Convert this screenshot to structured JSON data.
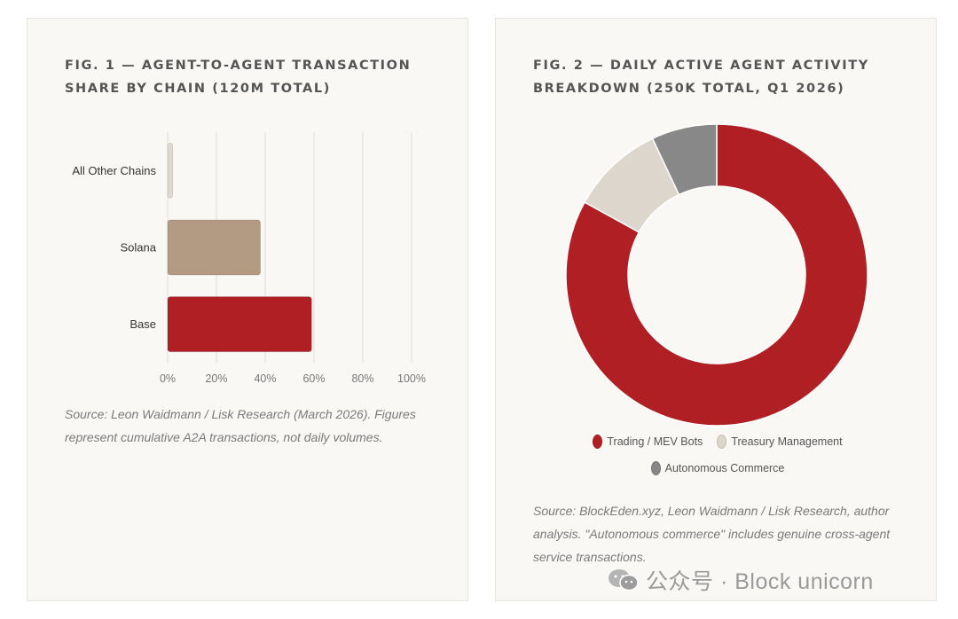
{
  "fig1": {
    "title": "FIG. 1 — AGENT-TO-AGENT TRANSACTION SHARE BY CHAIN (120M TOTAL)",
    "source": "Source: Leon Waidmann / Lisk Research (March 2026). Figures represent cumulative A2A transactions, not daily volumes."
  },
  "fig2": {
    "title": "FIG. 2 — DAILY ACTIVE AGENT ACTIVITY BREAKDOWN (250K TOTAL, Q1 2026)",
    "source": "Source: BlockEden.xyz, Leon Waidmann / Lisk Research, author analysis. \"Autonomous commerce\" includes genuine cross-agent service transactions."
  },
  "watermark": {
    "text": "公众号 · Block unicorn",
    "icon": "wechat-icon"
  },
  "chart_data": [
    {
      "type": "bar",
      "orientation": "horizontal",
      "title": "FIG. 1 — AGENT-TO-AGENT TRANSACTION SHARE BY CHAIN (120M TOTAL)",
      "categories": [
        "All Other Chains",
        "Solana",
        "Base"
      ],
      "values": [
        2,
        38,
        59
      ],
      "colors": [
        "#e0d9cf",
        "#b39a83",
        "#b01f24"
      ],
      "xlim": [
        0,
        100
      ],
      "xticks": [
        "0%",
        "20%",
        "40%",
        "60%",
        "80%",
        "100%"
      ],
      "tick_values": [
        0,
        20,
        40,
        60,
        80,
        100
      ],
      "grid": true,
      "legend": "none"
    },
    {
      "type": "pie",
      "donut": true,
      "title": "FIG. 2 — DAILY ACTIVE AGENT ACTIVITY BREAKDOWN (250K TOTAL, Q1 2026)",
      "labels": [
        "Trading / MEV Bots",
        "Treasury Management",
        "Autonomous Commerce"
      ],
      "values": [
        83,
        10,
        7
      ],
      "colors": [
        "#b01f24",
        "#ddd6cc",
        "#888888"
      ],
      "legend": "bottom"
    }
  ]
}
